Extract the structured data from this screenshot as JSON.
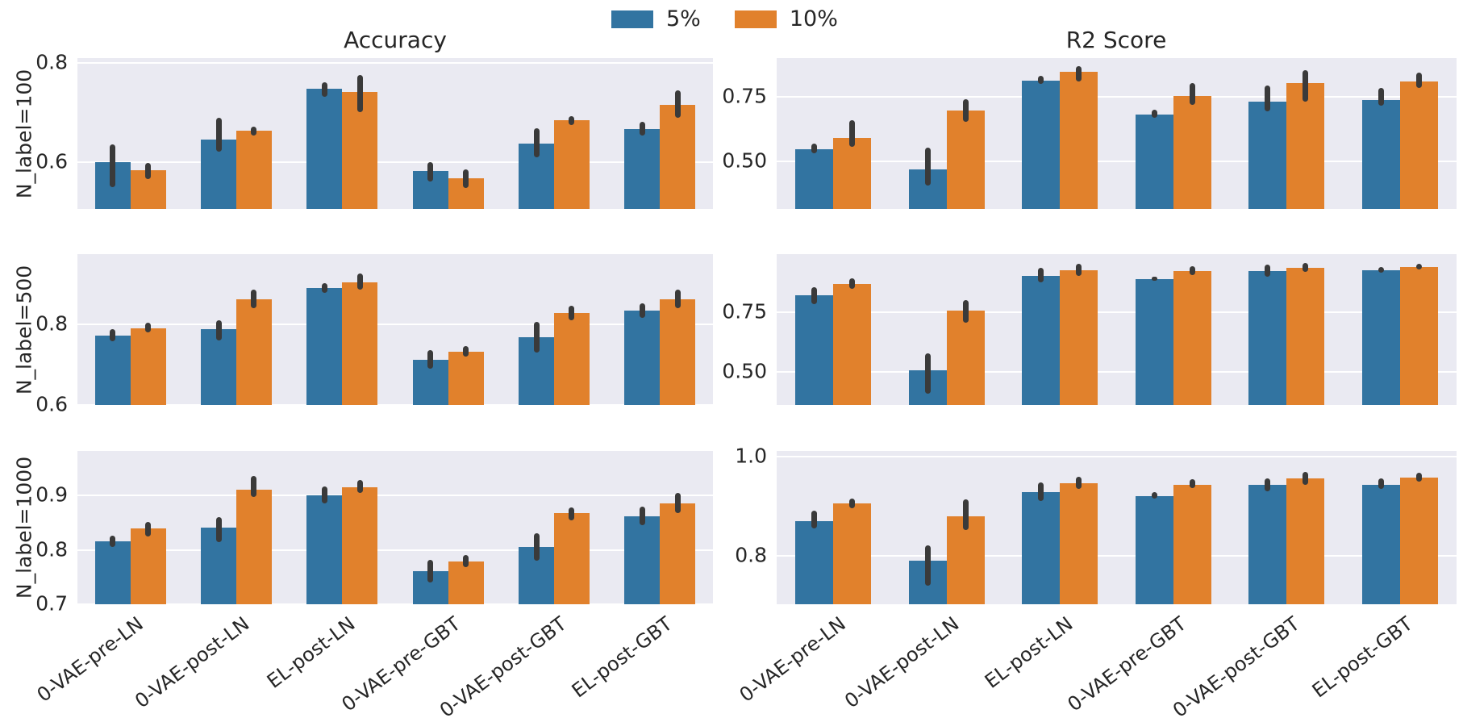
{
  "chart_data": {
    "type": "bar",
    "grid": true,
    "legend_position": "top-center",
    "col_titles": [
      "Accuracy",
      "R2 Score"
    ],
    "row_labels": [
      "N_label=100",
      "N_label=500",
      "N_label=1000"
    ],
    "categories": [
      "0-VAE-pre-LN",
      "0-VAE-post-LN",
      "EL-post-LN",
      "0-VAE-pre-GBT",
      "0-VAE-post-GBT",
      "EL-post-GBT"
    ],
    "series_labels": [
      "5%",
      "10%"
    ],
    "palette": {
      "series": [
        "#3274a1",
        "#e1812c"
      ],
      "error_bar": "#3a3a3a",
      "axes_background": "#eaeaf2",
      "grid_color": "#ffffff",
      "text": "#262626"
    },
    "subplots": [
      {
        "row": 0,
        "col": 0,
        "title": "Accuracy",
        "row_label": "N_label=100",
        "ylim": [
          0.505,
          0.81
        ],
        "yticks": [
          {
            "value": 0.6,
            "label": "0.6"
          },
          {
            "value": 0.8,
            "label": "0.8"
          }
        ],
        "series": [
          {
            "name": "5%",
            "values": [
              0.599,
              0.646,
              0.748,
              0.581,
              0.637,
              0.666
            ],
            "err_lo": [
              0.549,
              0.62,
              0.732,
              0.56,
              0.61,
              0.653
            ],
            "err_hi": [
              0.636,
              0.69,
              0.761,
              0.6,
              0.668,
              0.681
            ]
          },
          {
            "name": "10%",
            "values": [
              0.584,
              0.663,
              0.741,
              0.567,
              0.684,
              0.715
            ],
            "err_lo": [
              0.565,
              0.654,
              0.7,
              0.548,
              0.674,
              0.69
            ],
            "err_hi": [
              0.598,
              0.671,
              0.776,
              0.585,
              0.692,
              0.745
            ]
          }
        ]
      },
      {
        "row": 0,
        "col": 1,
        "title": "R2 Score",
        "row_label": "N_label=100",
        "ylim": [
          0.317,
          0.899
        ],
        "yticks": [
          {
            "value": 0.5,
            "label": "0.50"
          },
          {
            "value": 0.75,
            "label": "0.75"
          }
        ],
        "series": [
          {
            "name": "5%",
            "values": [
              0.547,
              0.47,
              0.813,
              0.68,
              0.731,
              0.737
            ],
            "err_lo": [
              0.533,
              0.408,
              0.799,
              0.668,
              0.695,
              0.715
            ],
            "err_hi": [
              0.568,
              0.554,
              0.832,
              0.699,
              0.793,
              0.784
            ]
          },
          {
            "name": "10%",
            "values": [
              0.591,
              0.698,
              0.845,
              0.754,
              0.804,
              0.808
            ],
            "err_lo": [
              0.556,
              0.654,
              0.81,
              0.72,
              0.731,
              0.784
            ],
            "err_hi": [
              0.659,
              0.74,
              0.868,
              0.804,
              0.852,
              0.842
            ]
          }
        ]
      },
      {
        "row": 1,
        "col": 0,
        "title": "",
        "row_label": "N_label=500",
        "ylim": [
          0.6,
          0.973
        ],
        "yticks": [
          {
            "value": 0.6,
            "label": "0.6"
          },
          {
            "value": 0.8,
            "label": "0.8"
          }
        ],
        "series": [
          {
            "name": "5%",
            "values": [
              0.772,
              0.787,
              0.89,
              0.712,
              0.768,
              0.833
            ],
            "err_lo": [
              0.757,
              0.76,
              0.878,
              0.69,
              0.73,
              0.815
            ],
            "err_hi": [
              0.787,
              0.81,
              0.901,
              0.735,
              0.805,
              0.851
            ]
          },
          {
            "name": "10%",
            "values": [
              0.79,
              0.861,
              0.903,
              0.732,
              0.828,
              0.861
            ],
            "err_lo": [
              0.779,
              0.84,
              0.885,
              0.719,
              0.81,
              0.84
            ],
            "err_hi": [
              0.803,
              0.886,
              0.925,
              0.746,
              0.846,
              0.886
            ]
          }
        ]
      },
      {
        "row": 1,
        "col": 1,
        "title": "",
        "row_label": "N_label=500",
        "ylim": [
          0.36,
          0.992
        ],
        "yticks": [
          {
            "value": 0.5,
            "label": "0.50"
          },
          {
            "value": 0.75,
            "label": "0.75"
          }
        ],
        "series": [
          {
            "name": "5%",
            "values": [
              0.82,
              0.504,
              0.902,
              0.887,
              0.921,
              0.925
            ],
            "err_lo": [
              0.784,
              0.407,
              0.874,
              0.88,
              0.897,
              0.913
            ],
            "err_hi": [
              0.854,
              0.575,
              0.936,
              0.899,
              0.947,
              0.939
            ]
          },
          {
            "name": "10%",
            "values": [
              0.868,
              0.756,
              0.924,
              0.921,
              0.936,
              0.938
            ],
            "err_lo": [
              0.846,
              0.705,
              0.902,
              0.905,
              0.919,
              0.929
            ],
            "err_hi": [
              0.891,
              0.801,
              0.951,
              0.942,
              0.955,
              0.953
            ]
          }
        ]
      },
      {
        "row": 2,
        "col": 0,
        "title": "",
        "row_label": "N_label=1000",
        "ylim": [
          0.7,
          0.982
        ],
        "yticks": [
          {
            "value": 0.7,
            "label": "0.7"
          },
          {
            "value": 0.8,
            "label": "0.8"
          },
          {
            "value": 0.9,
            "label": "0.9"
          }
        ],
        "series": [
          {
            "name": "5%",
            "values": [
              0.816,
              0.841,
              0.901,
              0.761,
              0.806,
              0.862
            ],
            "err_lo": [
              0.806,
              0.815,
              0.886,
              0.74,
              0.78,
              0.845
            ],
            "err_hi": [
              0.826,
              0.861,
              0.916,
              0.781,
              0.83,
              0.88
            ]
          },
          {
            "name": "10%",
            "values": [
              0.839,
              0.911,
              0.915,
              0.778,
              0.867,
              0.885
            ],
            "err_lo": [
              0.825,
              0.898,
              0.905,
              0.768,
              0.855,
              0.868
            ],
            "err_hi": [
              0.851,
              0.936,
              0.929,
              0.79,
              0.878,
              0.905
            ]
          }
        ]
      },
      {
        "row": 2,
        "col": 1,
        "title": "",
        "row_label": "N_label=1000",
        "ylim": [
          0.701,
          1.012
        ],
        "yticks": [
          {
            "value": 0.8,
            "label": "0.8"
          },
          {
            "value": 1.0,
            "label": "1.0"
          }
        ],
        "series": [
          {
            "name": "5%",
            "values": [
              0.87,
              0.789,
              0.929,
              0.921,
              0.944,
              0.944
            ],
            "err_lo": [
              0.855,
              0.738,
              0.91,
              0.916,
              0.93,
              0.935
            ],
            "err_hi": [
              0.891,
              0.82,
              0.948,
              0.929,
              0.956,
              0.956
            ]
          },
          {
            "name": "10%",
            "values": [
              0.906,
              0.879,
              0.946,
              0.944,
              0.956,
              0.958
            ],
            "err_lo": [
              0.895,
              0.851,
              0.935,
              0.937,
              0.943,
              0.95
            ],
            "err_hi": [
              0.915,
              0.914,
              0.959,
              0.954,
              0.969,
              0.967
            ]
          }
        ]
      }
    ]
  }
}
